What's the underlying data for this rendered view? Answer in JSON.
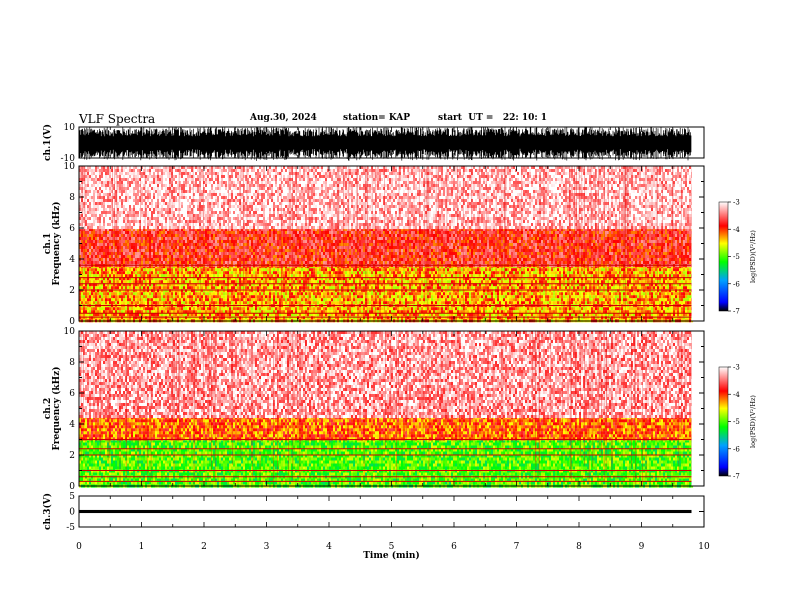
{
  "header": {
    "title": "VLF Spectra",
    "date": "Aug.30, 2024",
    "station": "station= KAP",
    "start": "start  UT =   22: 10: 1"
  },
  "colors": {
    "colorbar_stops": [
      "#ffffff",
      "#ff0000",
      "#ffff00",
      "#00ff00",
      "#0000ff",
      "#000000"
    ],
    "waveform": "#000000",
    "spectrogram_base": "#ff2020"
  },
  "chart_data": [
    {
      "type": "line",
      "panel": "ch1_waveform",
      "ylabel": "ch.1(V)",
      "ylim": [
        -10,
        10
      ],
      "yticklabels": [
        "10",
        "-10"
      ],
      "x_range_min": [
        0,
        9.8
      ],
      "description_values": "dense broadband noise filling roughly -10 to 10 V"
    },
    {
      "type": "heatmap",
      "panel": "ch1_spectrogram",
      "ylabel": "ch.1\nFrequency (kHz)",
      "ylim": [
        0,
        10
      ],
      "yticklabels": [
        "0",
        "2",
        "4",
        "6",
        "8",
        "10"
      ],
      "x_range_min": [
        0,
        9.8
      ],
      "colorbar": {
        "label": "log(PSD)(V²/Hz)",
        "range": [
          -7,
          -3
        ],
        "ticklabels": [
          "-3",
          "-4",
          "-5",
          "-6",
          "-7"
        ]
      },
      "bands_khz": [
        {
          "from": 0,
          "to": 3.6,
          "level": -4.3
        },
        {
          "from": 3.6,
          "to": 6,
          "level": -3.8
        },
        {
          "from": 6,
          "to": 10,
          "level": -3.2
        }
      ],
      "lines_khz": [
        0.25,
        0.5,
        1.0,
        2.0,
        2.4,
        2.8,
        3.6
      ]
    },
    {
      "type": "heatmap",
      "panel": "ch2_spectrogram",
      "ylabel": "ch.2\nFrequency (kHz)",
      "ylim": [
        0,
        10
      ],
      "yticklabels": [
        "0",
        "2",
        "4",
        "6",
        "8",
        "10"
      ],
      "x_range_min": [
        0,
        9.8
      ],
      "colorbar": {
        "label": "log(PSD)(V²/Hz)",
        "range": [
          -7,
          -3
        ],
        "ticklabels": [
          "-3",
          "-4",
          "-5",
          "-6",
          "-7"
        ]
      },
      "bands_khz": [
        {
          "from": 0,
          "to": 3.0,
          "level": -5.0
        },
        {
          "from": 3.0,
          "to": 4.5,
          "level": -4.1
        },
        {
          "from": 4.5,
          "to": 10,
          "level": -3.3
        }
      ],
      "lines_khz": [
        0.3,
        0.6,
        1.0,
        2.0,
        2.4,
        3.0
      ]
    },
    {
      "type": "line",
      "panel": "ch3_waveform",
      "ylabel": "ch.3(V)",
      "ylim": [
        -5,
        5
      ],
      "yticklabels": [
        "5",
        "0",
        "-5"
      ],
      "x_range_min": [
        0,
        9.8
      ],
      "band_v": [
        -0.5,
        0.5
      ]
    }
  ],
  "xaxis": {
    "label": "Time (min)",
    "range": [
      0,
      10
    ],
    "ticklabels": [
      "0",
      "1",
      "2",
      "3",
      "4",
      "5",
      "6",
      "7",
      "8",
      "9",
      "10"
    ]
  }
}
